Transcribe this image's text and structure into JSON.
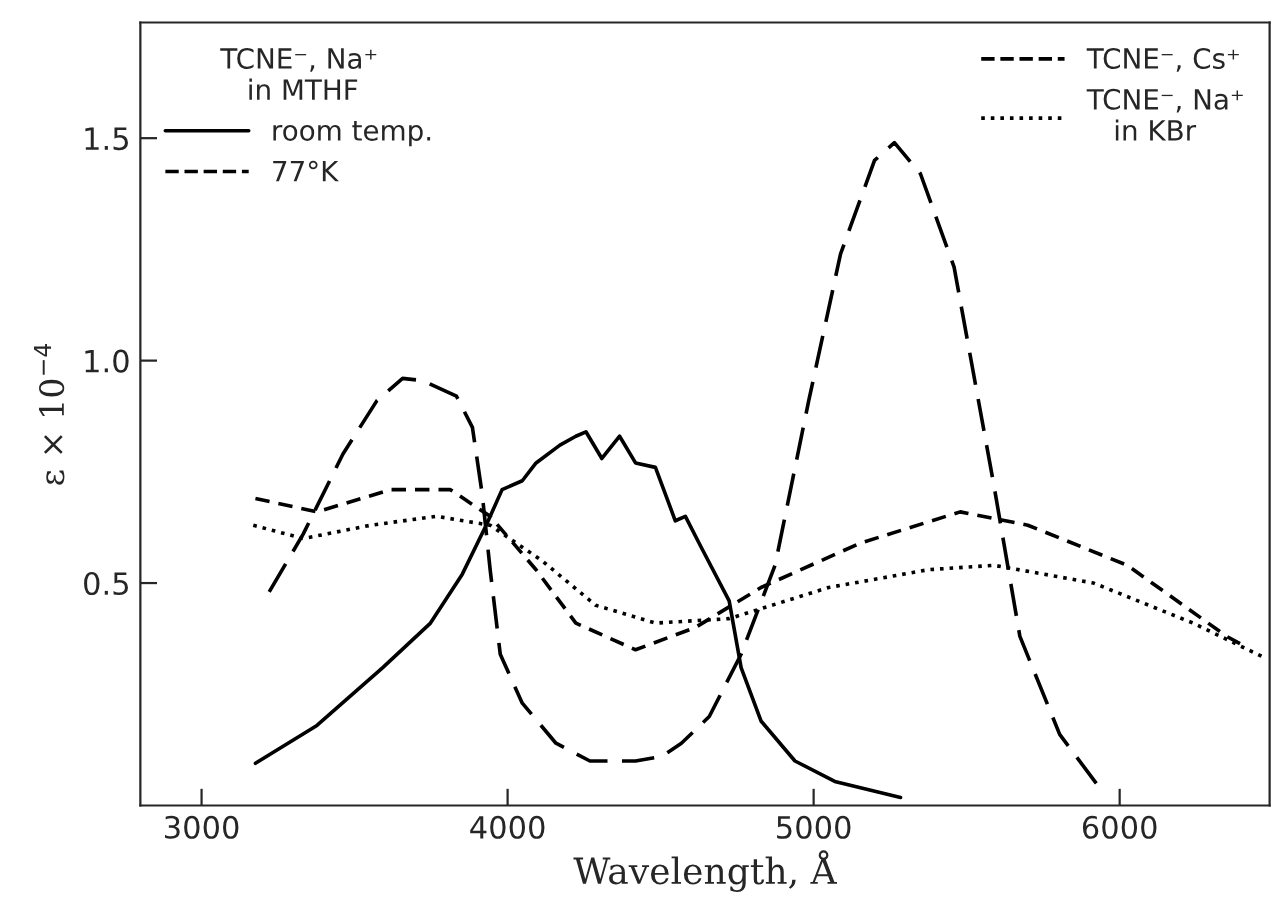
{
  "chart_data": {
    "type": "line",
    "xlabel": "Wavelength, Å",
    "ylabel": "ε × 10$^{−4}$",
    "legend_title": "TCNE⁻, Na⁺\n   in MTHF",
    "legend": "top left",
    "xlim": [
      2800,
      6490
    ],
    "ylim": [
      0,
      1.76
    ],
    "xticks": [
      3000,
      4000,
      5000,
      6000
    ],
    "yticks": [
      0.5,
      {
        "value": 1,
        "label": "1.0"
      },
      1.5
    ],
    "grid": false,
    "marker": "none",
    "series": [
      {
        "name": "room temp.",
        "color": "#000000",
        "line_style": "solid",
        "x": [
          3176,
          3377,
          3592,
          3748,
          3852,
          3930,
          3982,
          4048,
          4093,
          4171,
          4223,
          4256,
          4308,
          4366,
          4418,
          4483,
          4548,
          4581,
          4633,
          4724,
          4763,
          4828,
          4939,
          5069,
          5284
        ],
        "values": [
          0.095,
          0.18,
          0.31,
          0.41,
          0.52,
          0.63,
          0.71,
          0.73,
          0.77,
          0.81,
          0.83,
          0.84,
          0.78,
          0.83,
          0.77,
          0.76,
          0.64,
          0.65,
          0.58,
          0.46,
          0.31,
          0.19,
          0.1,
          0.054,
          0.018
        ]
      },
      {
        "name": "77°K",
        "color": "#000000",
        "line_style": "dashed",
        "x": [
          3221,
          3332,
          3462,
          3573,
          3657,
          3722,
          3833,
          3885,
          3917,
          3943,
          3976,
          4048,
          4158,
          4269,
          4418,
          4503,
          4568,
          4659,
          4763,
          4874,
          4984,
          5088,
          5199,
          5264,
          5349,
          5459,
          5589,
          5674,
          5804,
          5934
        ],
        "values": [
          0.48,
          0.61,
          0.79,
          0.91,
          0.96,
          0.955,
          0.92,
          0.85,
          0.7,
          0.53,
          0.34,
          0.23,
          0.14,
          0.1,
          0.1,
          0.11,
          0.14,
          0.2,
          0.34,
          0.54,
          0.91,
          1.24,
          1.45,
          1.49,
          1.42,
          1.21,
          0.72,
          0.38,
          0.16,
          0.04
        ]
      },
      {
        "name": "TCNE⁻, Cs⁺",
        "color": "#000000",
        "line_style": "dashed",
        "x": [
          3176,
          3377,
          3618,
          3813,
          3943,
          4093,
          4223,
          4418,
          4613,
          4828,
          5153,
          5479,
          5700,
          6025,
          6350,
          6403
        ],
        "values": [
          0.69,
          0.66,
          0.71,
          0.71,
          0.65,
          0.53,
          0.41,
          0.35,
          0.4,
          0.49,
          0.59,
          0.66,
          0.63,
          0.54,
          0.38,
          0.36
        ]
      },
      {
        "name": "TCNE⁻, Na⁺\n   in KBr",
        "color": "#000000",
        "line_style": "dotted",
        "x": [
          3169,
          3332,
          3553,
          3768,
          3943,
          4113,
          4288,
          4483,
          4724,
          5049,
          5375,
          5589,
          5915,
          6240,
          6480
        ],
        "values": [
          0.63,
          0.6,
          0.63,
          0.65,
          0.63,
          0.55,
          0.45,
          0.41,
          0.42,
          0.49,
          0.53,
          0.54,
          0.5,
          0.41,
          0.33
        ]
      }
    ]
  }
}
